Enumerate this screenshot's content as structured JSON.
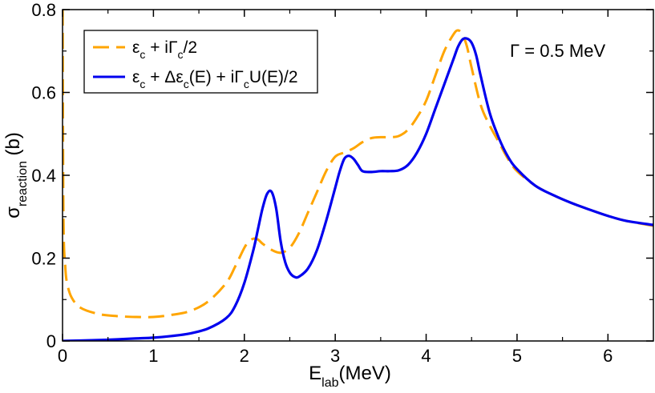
{
  "chart_data": {
    "type": "line",
    "xlim": [
      0,
      6.5
    ],
    "ylim": [
      0,
      0.8
    ],
    "xticks": [
      0,
      1,
      2,
      3,
      4,
      5,
      6
    ],
    "yticks": [
      0,
      0.2,
      0.4,
      0.6,
      0.8
    ],
    "xtick_labels": [
      "0",
      "1",
      "2",
      "3",
      "4",
      "5",
      "6"
    ],
    "ytick_labels": [
      "0",
      "0.2",
      "0.4",
      "0.6",
      "0.8"
    ],
    "xlabel": {
      "main": "E",
      "sub": "lab",
      "rest": "(MeV)"
    },
    "ylabel": {
      "main": "σ",
      "sub": "reaction",
      "rest": " (b)"
    },
    "annotation": "Γ = 0.5 MeV",
    "legend_position": "top-left",
    "series": [
      {
        "name": "dashed",
        "color": "#FFA500",
        "style": "dashed",
        "legend": [
          {
            "t": "ε"
          },
          {
            "t": "c",
            "sub": true
          },
          {
            "t": " + iΓ"
          },
          {
            "t": "c",
            "sub": true
          },
          {
            "t": "/2"
          }
        ],
        "x": [
          0.001,
          0.01,
          0.03,
          0.05,
          0.1,
          0.2,
          0.4,
          0.6,
          0.8,
          1.0,
          1.2,
          1.4,
          1.6,
          1.8,
          1.9,
          2.0,
          2.05,
          2.1,
          2.15,
          2.2,
          2.3,
          2.4,
          2.5,
          2.6,
          2.7,
          2.8,
          2.9,
          3.0,
          3.1,
          3.2,
          3.3,
          3.4,
          3.5,
          3.6,
          3.7,
          3.8,
          3.9,
          4.0,
          4.1,
          4.2,
          4.3,
          4.35,
          4.4,
          4.45,
          4.5,
          4.6,
          4.7,
          4.8,
          4.9,
          5.0,
          5.2,
          5.4,
          5.6,
          5.8,
          6.0,
          6.2,
          6.5
        ],
        "y": [
          0.8,
          0.3,
          0.18,
          0.14,
          0.105,
          0.08,
          0.065,
          0.06,
          0.058,
          0.058,
          0.063,
          0.072,
          0.095,
          0.14,
          0.18,
          0.225,
          0.24,
          0.247,
          0.245,
          0.235,
          0.22,
          0.213,
          0.225,
          0.26,
          0.31,
          0.36,
          0.41,
          0.445,
          0.455,
          0.465,
          0.48,
          0.49,
          0.492,
          0.492,
          0.495,
          0.51,
          0.54,
          0.58,
          0.64,
          0.7,
          0.74,
          0.75,
          0.74,
          0.71,
          0.66,
          0.57,
          0.52,
          0.48,
          0.44,
          0.41,
          0.375,
          0.352,
          0.333,
          0.317,
          0.302,
          0.29,
          0.278
        ]
      },
      {
        "name": "solid",
        "color": "#0000EE",
        "style": "solid",
        "legend": [
          {
            "t": "ε"
          },
          {
            "t": "c",
            "sub": true
          },
          {
            "t": " + Δε"
          },
          {
            "t": "c",
            "sub": true
          },
          {
            "t": "(E) + iΓ"
          },
          {
            "t": "c",
            "sub": true
          },
          {
            "t": "U(E)/2"
          }
        ],
        "x": [
          0.0,
          0.2,
          0.5,
          0.8,
          1.0,
          1.2,
          1.4,
          1.6,
          1.8,
          1.9,
          2.0,
          2.1,
          2.15,
          2.2,
          2.25,
          2.3,
          2.35,
          2.4,
          2.45,
          2.5,
          2.55,
          2.6,
          2.7,
          2.8,
          2.9,
          3.0,
          3.05,
          3.1,
          3.15,
          3.2,
          3.25,
          3.3,
          3.4,
          3.5,
          3.6,
          3.7,
          3.8,
          3.9,
          4.0,
          4.1,
          4.2,
          4.3,
          4.35,
          4.4,
          4.45,
          4.5,
          4.55,
          4.6,
          4.7,
          4.8,
          4.9,
          5.0,
          5.2,
          5.4,
          5.6,
          5.8,
          6.0,
          6.2,
          6.5
        ],
        "y": [
          0.0,
          0.001,
          0.003,
          0.006,
          0.008,
          0.012,
          0.018,
          0.03,
          0.055,
          0.085,
          0.14,
          0.22,
          0.27,
          0.32,
          0.355,
          0.36,
          0.32,
          0.24,
          0.19,
          0.165,
          0.155,
          0.155,
          0.175,
          0.22,
          0.29,
          0.37,
          0.41,
          0.44,
          0.447,
          0.44,
          0.425,
          0.41,
          0.408,
          0.41,
          0.41,
          0.412,
          0.425,
          0.455,
          0.5,
          0.56,
          0.62,
          0.68,
          0.71,
          0.728,
          0.73,
          0.72,
          0.69,
          0.64,
          0.55,
          0.49,
          0.445,
          0.415,
          0.375,
          0.352,
          0.333,
          0.317,
          0.302,
          0.29,
          0.28
        ]
      }
    ]
  }
}
